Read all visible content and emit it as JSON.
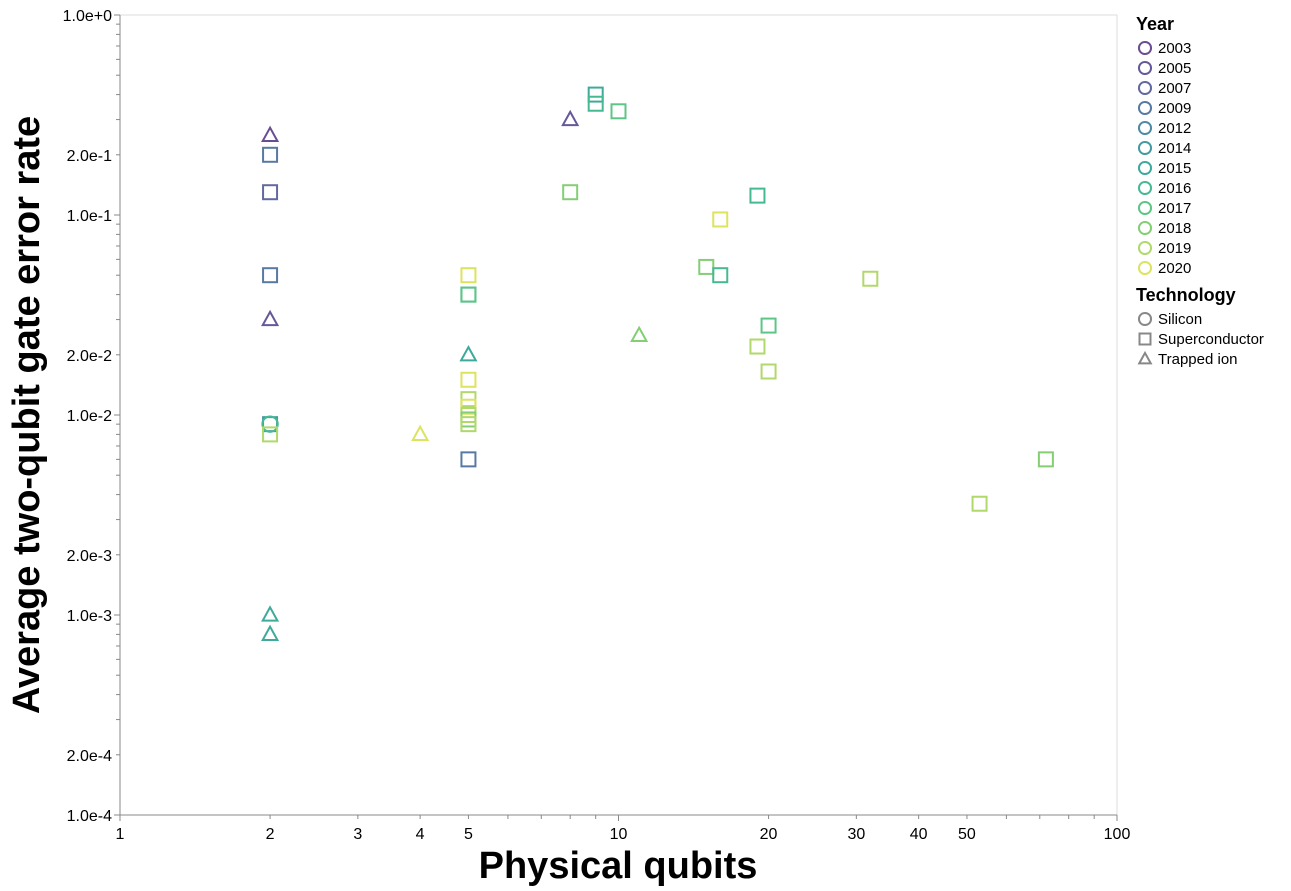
{
  "chart_data": {
    "type": "scatter",
    "xlabel": "Physical qubits",
    "ylabel": "Average two-qubit gate error rate",
    "x_scale": "log",
    "y_scale": "log",
    "xlim": [
      1,
      100
    ],
    "ylim": [
      0.0001,
      1.0
    ],
    "x_ticks": [
      {
        "value": 1,
        "label": "1"
      },
      {
        "value": 2,
        "label": "2"
      },
      {
        "value": 3,
        "label": "3"
      },
      {
        "value": 4,
        "label": "4"
      },
      {
        "value": 5,
        "label": "5"
      },
      {
        "value": 10,
        "label": "10"
      },
      {
        "value": 20,
        "label": "20"
      },
      {
        "value": 30,
        "label": "30"
      },
      {
        "value": 40,
        "label": "40"
      },
      {
        "value": 50,
        "label": "50"
      },
      {
        "value": 100,
        "label": "100"
      }
    ],
    "y_ticks": [
      {
        "value": 1.0,
        "label": "1.0e+0"
      },
      {
        "value": 0.2,
        "label": "2.0e-1"
      },
      {
        "value": 0.1,
        "label": "1.0e-1"
      },
      {
        "value": 0.02,
        "label": "2.0e-2"
      },
      {
        "value": 0.01,
        "label": "1.0e-2"
      },
      {
        "value": 0.002,
        "label": "2.0e-3"
      },
      {
        "value": 0.001,
        "label": "1.0e-3"
      },
      {
        "value": 0.0002,
        "label": "2.0e-4"
      },
      {
        "value": 0.0001,
        "label": "1.0e-4"
      }
    ],
    "grid": false,
    "legend_position": "right",
    "legend_year": {
      "title": "Year",
      "items": [
        {
          "label": "2003",
          "color": "#6a4c93"
        },
        {
          "label": "2005",
          "color": "#67589a"
        },
        {
          "label": "2007",
          "color": "#6268a0"
        },
        {
          "label": "2009",
          "color": "#5879a3"
        },
        {
          "label": "2012",
          "color": "#4d8aa3"
        },
        {
          "label": "2014",
          "color": "#449aa1"
        },
        {
          "label": "2015",
          "color": "#3eaa9b"
        },
        {
          "label": "2016",
          "color": "#47b992"
        },
        {
          "label": "2017",
          "color": "#5dc585"
        },
        {
          "label": "2018",
          "color": "#84ce74"
        },
        {
          "label": "2019",
          "color": "#b0d86a"
        },
        {
          "label": "2020",
          "color": "#dce35e"
        }
      ]
    },
    "legend_technology": {
      "title": "Technology",
      "items": [
        {
          "label": "Silicon",
          "shape": "circle"
        },
        {
          "label": "Superconductor",
          "shape": "square"
        },
        {
          "label": "Trapped ion",
          "shape": "triangle"
        }
      ]
    },
    "points": [
      {
        "x": 2,
        "y": 0.25,
        "tech": "Trapped ion",
        "year": "2003"
      },
      {
        "x": 2,
        "y": 0.2,
        "tech": "Superconductor",
        "year": "2009"
      },
      {
        "x": 2,
        "y": 0.13,
        "tech": "Superconductor",
        "year": "2007"
      },
      {
        "x": 2,
        "y": 0.05,
        "tech": "Superconductor",
        "year": "2009"
      },
      {
        "x": 2,
        "y": 0.03,
        "tech": "Trapped ion",
        "year": "2005"
      },
      {
        "x": 2,
        "y": 0.009,
        "tech": "Superconductor",
        "year": "2014"
      },
      {
        "x": 2,
        "y": 0.009,
        "tech": "Silicon",
        "year": "2016"
      },
      {
        "x": 2,
        "y": 0.008,
        "tech": "Superconductor",
        "year": "2019"
      },
      {
        "x": 2,
        "y": 0.001,
        "tech": "Trapped ion",
        "year": "2015"
      },
      {
        "x": 2,
        "y": 0.0008,
        "tech": "Trapped ion",
        "year": "2015"
      },
      {
        "x": 4,
        "y": 0.008,
        "tech": "Trapped ion",
        "year": "2020"
      },
      {
        "x": 5,
        "y": 0.05,
        "tech": "Superconductor",
        "year": "2020"
      },
      {
        "x": 5,
        "y": 0.04,
        "tech": "Superconductor",
        "year": "2015"
      },
      {
        "x": 5,
        "y": 0.04,
        "tech": "Superconductor",
        "year": "2017"
      },
      {
        "x": 5,
        "y": 0.02,
        "tech": "Trapped ion",
        "year": "2015"
      },
      {
        "x": 5,
        "y": 0.015,
        "tech": "Superconductor",
        "year": "2020"
      },
      {
        "x": 5,
        "y": 0.012,
        "tech": "Superconductor",
        "year": "2019"
      },
      {
        "x": 5,
        "y": 0.011,
        "tech": "Superconductor",
        "year": "2020"
      },
      {
        "x": 5,
        "y": 0.01,
        "tech": "Superconductor",
        "year": "2019"
      },
      {
        "x": 5,
        "y": 0.0095,
        "tech": "Superconductor",
        "year": "2018"
      },
      {
        "x": 5,
        "y": 0.009,
        "tech": "Superconductor",
        "year": "2019"
      },
      {
        "x": 5,
        "y": 0.006,
        "tech": "Superconductor",
        "year": "2009"
      },
      {
        "x": 8,
        "y": 0.13,
        "tech": "Superconductor",
        "year": "2018"
      },
      {
        "x": 8,
        "y": 0.3,
        "tech": "Trapped ion",
        "year": "2005"
      },
      {
        "x": 9,
        "y": 0.4,
        "tech": "Superconductor",
        "year": "2015"
      },
      {
        "x": 9,
        "y": 0.36,
        "tech": "Superconductor",
        "year": "2016"
      },
      {
        "x": 10,
        "y": 0.33,
        "tech": "Superconductor",
        "year": "2017"
      },
      {
        "x": 11,
        "y": 0.025,
        "tech": "Trapped ion",
        "year": "2018"
      },
      {
        "x": 15,
        "y": 0.055,
        "tech": "Superconductor",
        "year": "2018"
      },
      {
        "x": 16,
        "y": 0.05,
        "tech": "Superconductor",
        "year": "2016"
      },
      {
        "x": 16,
        "y": 0.095,
        "tech": "Superconductor",
        "year": "2020"
      },
      {
        "x": 19,
        "y": 0.125,
        "tech": "Superconductor",
        "year": "2016"
      },
      {
        "x": 19,
        "y": 0.022,
        "tech": "Superconductor",
        "year": "2019"
      },
      {
        "x": 20,
        "y": 0.028,
        "tech": "Superconductor",
        "year": "2017"
      },
      {
        "x": 20,
        "y": 0.0165,
        "tech": "Superconductor",
        "year": "2019"
      },
      {
        "x": 32,
        "y": 0.048,
        "tech": "Superconductor",
        "year": "2019"
      },
      {
        "x": 53,
        "y": 0.0036,
        "tech": "Superconductor",
        "year": "2019"
      },
      {
        "x": 72,
        "y": 0.006,
        "tech": "Superconductor",
        "year": "2018"
      }
    ]
  }
}
